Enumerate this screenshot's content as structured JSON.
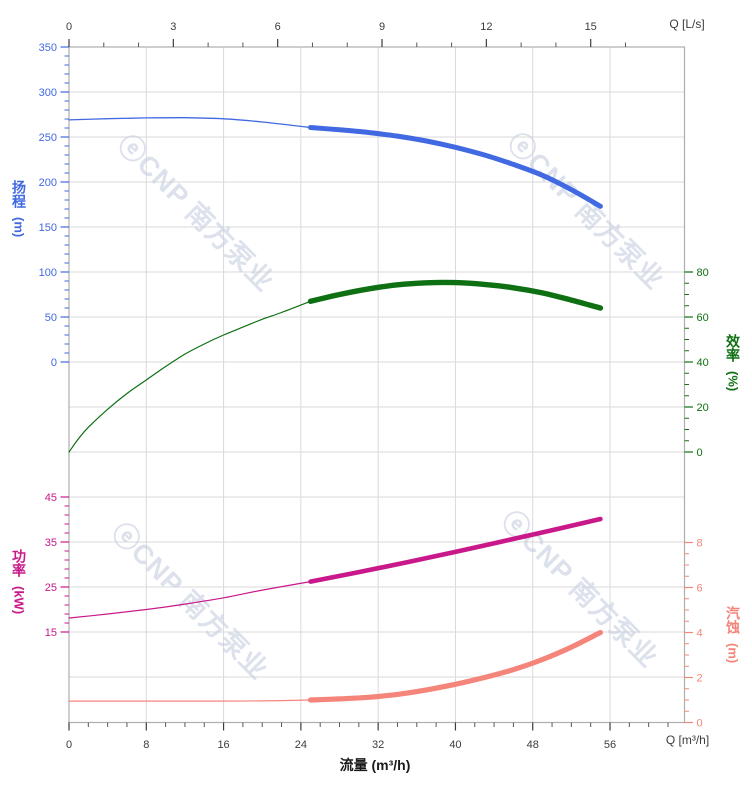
{
  "watermark": {
    "logo": "ⓔ",
    "text": "CNP 南方泵业",
    "color": "#C7CFE2"
  },
  "chart_data": {
    "type": "line",
    "title": "",
    "x_axis_bottom": {
      "label": "流量 (m³/h)",
      "end_label": "Q [m³/h]",
      "ticks": [
        0,
        8,
        16,
        24,
        32,
        40,
        48,
        56
      ],
      "minor_step": 2,
      "minor_max": 62,
      "range": [
        0,
        63.7
      ]
    },
    "x_axis_top": {
      "end_label": "Q [L/s]",
      "ticks": [
        0,
        3,
        6,
        9,
        12,
        15
      ],
      "minor_step": 1,
      "minor_max": 16,
      "units_per_bottom_unit": 3.6
    },
    "tick_label_color": "#3C3C3C",
    "grid": {
      "color": "#DADADA",
      "border_color": "#ADADAD"
    },
    "y_axes": [
      {
        "id": "head",
        "label": "扬程",
        "unit": "(m)",
        "color": "#4169E1",
        "side": "left",
        "ticks": [
          350,
          300,
          250,
          200,
          150,
          100,
          50,
          0
        ],
        "minor_step": 10,
        "range": [
          0,
          350
        ]
      },
      {
        "id": "efficiency",
        "label": "效率",
        "unit": "(%)",
        "color": "#0E7012",
        "side": "right",
        "ticks": [
          80,
          60,
          40,
          20,
          0
        ],
        "minor_step": 5,
        "range": [
          0,
          80
        ]
      },
      {
        "id": "power",
        "label": "功率",
        "unit": "(kW)",
        "color": "#C9188A",
        "side": "left",
        "ticks": [
          45,
          35,
          25,
          15
        ],
        "minor_step": 2,
        "range": [
          15,
          45
        ]
      },
      {
        "id": "npsh",
        "label": "汽蚀",
        "unit": "(m)",
        "color": "#F5857A",
        "side": "right",
        "ticks": [
          8,
          6,
          4,
          2,
          0
        ],
        "minor_step": 0.5,
        "range": [
          0,
          8
        ]
      }
    ],
    "series": [
      {
        "name": "head",
        "axis": "head",
        "rated_range": [
          25,
          55
        ],
        "points": [
          [
            0,
            269
          ],
          [
            4,
            270.3
          ],
          [
            8,
            271.2
          ],
          [
            12,
            271.4
          ],
          [
            16,
            270.2
          ],
          [
            20,
            266.7
          ],
          [
            25,
            260.5
          ],
          [
            28,
            258
          ],
          [
            31,
            255
          ],
          [
            34,
            251
          ],
          [
            37,
            245.5
          ],
          [
            40,
            238.5
          ],
          [
            43,
            230
          ],
          [
            46,
            219.5
          ],
          [
            49,
            207.5
          ],
          [
            52,
            191.5
          ],
          [
            55,
            173
          ]
        ]
      },
      {
        "name": "efficiency",
        "axis": "efficiency",
        "rated_range": [
          25,
          55
        ],
        "points": [
          [
            0,
            0
          ],
          [
            1,
            6
          ],
          [
            2,
            11
          ],
          [
            4,
            19
          ],
          [
            6,
            26
          ],
          [
            8,
            32
          ],
          [
            10,
            38
          ],
          [
            12,
            43.5
          ],
          [
            14,
            48
          ],
          [
            16,
            52
          ],
          [
            18,
            55.5
          ],
          [
            20,
            59
          ],
          [
            22,
            62
          ],
          [
            25,
            67
          ],
          [
            28,
            70
          ],
          [
            31,
            72.5
          ],
          [
            34,
            74.3
          ],
          [
            37,
            75.2
          ],
          [
            40,
            75.3
          ],
          [
            43,
            74.5
          ],
          [
            46,
            73
          ],
          [
            49,
            70.7
          ],
          [
            52,
            67.5
          ],
          [
            55,
            64
          ]
        ]
      },
      {
        "name": "power",
        "axis": "power",
        "rated_range": [
          25,
          55
        ],
        "points": [
          [
            0,
            18.1
          ],
          [
            4,
            19
          ],
          [
            8,
            20
          ],
          [
            12,
            21.2
          ],
          [
            16,
            22.6
          ],
          [
            20,
            24.3
          ],
          [
            25,
            26.2
          ],
          [
            30,
            28.3
          ],
          [
            35,
            30.5
          ],
          [
            40,
            32.8
          ],
          [
            45,
            35.2
          ],
          [
            50,
            37.6
          ],
          [
            55,
            40.1
          ]
        ]
      },
      {
        "name": "npsh",
        "axis": "npsh",
        "rated_range": [
          25,
          55
        ],
        "points": [
          [
            0,
            0.95
          ],
          [
            5,
            0.95
          ],
          [
            10,
            0.95
          ],
          [
            15,
            0.95
          ],
          [
            20,
            0.96
          ],
          [
            25,
            1.0
          ],
          [
            28,
            1.05
          ],
          [
            31,
            1.12
          ],
          [
            34,
            1.25
          ],
          [
            37,
            1.45
          ],
          [
            40,
            1.7
          ],
          [
            43,
            2.0
          ],
          [
            46,
            2.35
          ],
          [
            49,
            2.8
          ],
          [
            52,
            3.35
          ],
          [
            55,
            4.0
          ]
        ]
      }
    ]
  }
}
